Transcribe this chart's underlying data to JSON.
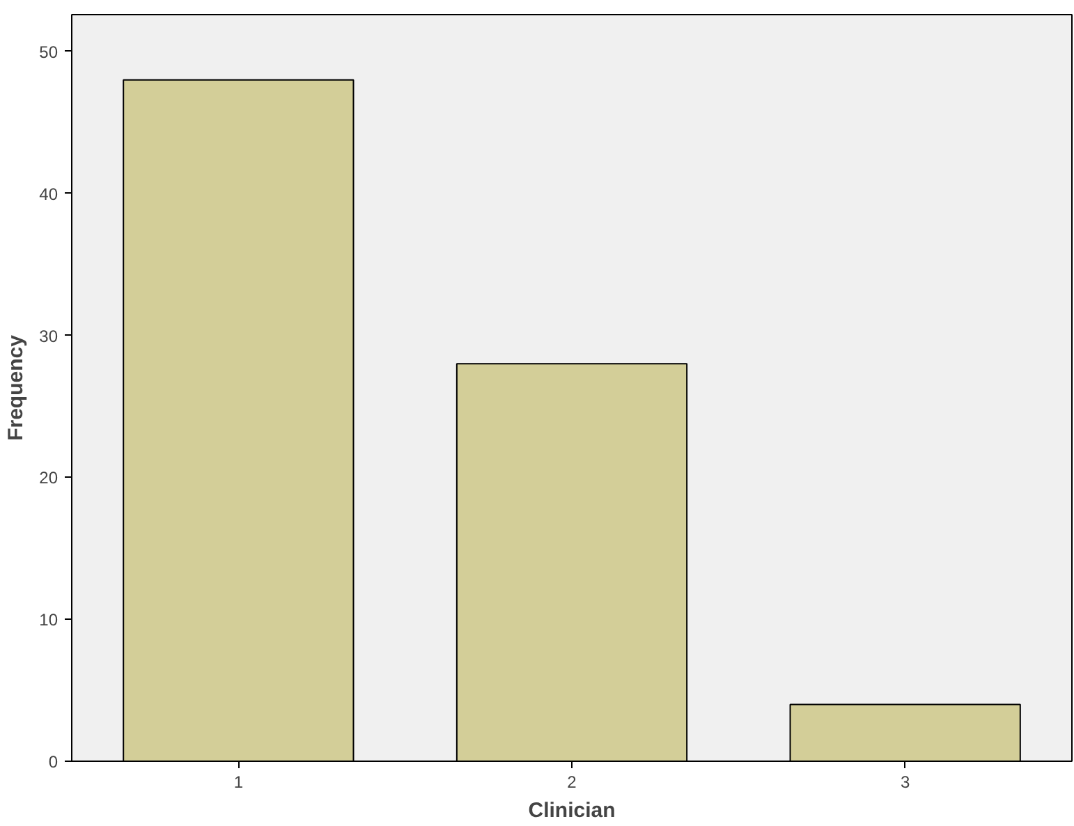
{
  "chart_data": {
    "type": "bar",
    "xlabel": "Clinician",
    "ylabel": "Frequency",
    "categories": [
      "1",
      "2",
      "3"
    ],
    "values": [
      48,
      28,
      4
    ],
    "color": "#d3ce98",
    "ylim": [
      0,
      52.6
    ],
    "yticks": [
      0,
      10,
      20,
      30,
      40,
      50
    ],
    "grid": false
  }
}
